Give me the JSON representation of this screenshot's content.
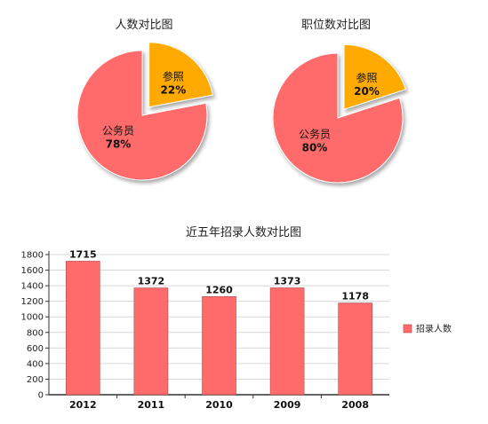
{
  "chart_data": [
    {
      "type": "pie",
      "title": "人数对比图",
      "slices": [
        {
          "label": "公务员",
          "value": 78,
          "display": "78%",
          "color": "#ff6b6b"
        },
        {
          "label": "参照",
          "value": 22,
          "display": "22%",
          "color": "#ffaa00"
        }
      ]
    },
    {
      "type": "pie",
      "title": "职位数对比图",
      "slices": [
        {
          "label": "公务员",
          "value": 80,
          "display": "80%",
          "color": "#ff6b6b"
        },
        {
          "label": "参照",
          "value": 20,
          "display": "20%",
          "color": "#ffaa00"
        }
      ]
    },
    {
      "type": "bar",
      "title": "近五年招录人数对比图",
      "categories": [
        "2012",
        "2011",
        "2010",
        "2009",
        "2008"
      ],
      "series": [
        {
          "name": "招录人数",
          "values": [
            1715,
            1372,
            1260,
            1373,
            1178
          ],
          "color": "#ff6b6b"
        }
      ],
      "ylim": [
        0,
        1800
      ],
      "yticks": [
        0,
        200,
        400,
        600,
        800,
        1000,
        1200,
        1400,
        1600,
        1800
      ],
      "grid": true,
      "legend": "right"
    }
  ]
}
